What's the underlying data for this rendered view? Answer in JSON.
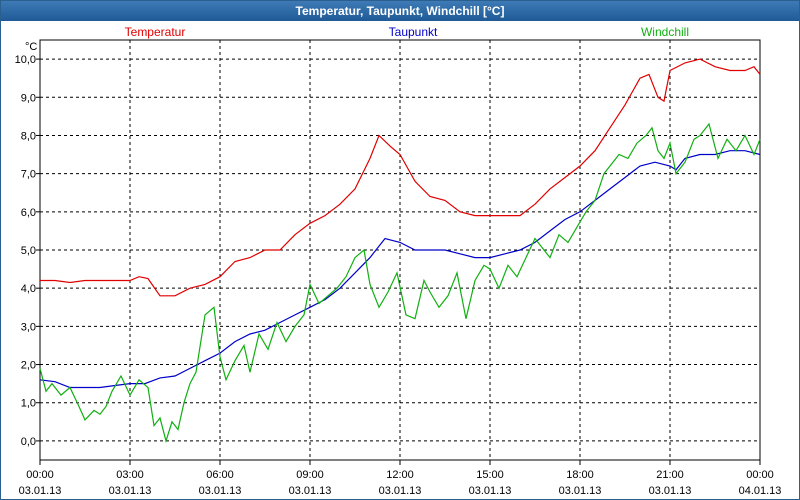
{
  "chart_data": {
    "type": "line",
    "title": "Temperatur, Taupunkt, Windchill [°C]",
    "ylabel": "°C",
    "ylim": [
      -0.5,
      10.5
    ],
    "xlim": [
      0,
      24
    ],
    "grid": true,
    "y_ticks": [
      "0,0",
      "1,0",
      "2,0",
      "3,0",
      "4,0",
      "5,0",
      "6,0",
      "7,0",
      "8,0",
      "9,0",
      "10,0"
    ],
    "x_ticks": [
      {
        "time": "00:00",
        "date": "03.01.13"
      },
      {
        "time": "03:00",
        "date": "03.01.13"
      },
      {
        "time": "06:00",
        "date": "03.01.13"
      },
      {
        "time": "09:00",
        "date": "03.01.13"
      },
      {
        "time": "12:00",
        "date": "03.01.13"
      },
      {
        "time": "15:00",
        "date": "03.01.13"
      },
      {
        "time": "18:00",
        "date": "03.01.13"
      },
      {
        "time": "21:00",
        "date": "03.01.13"
      },
      {
        "time": "00:00",
        "date": "04.01.13"
      }
    ],
    "series": [
      {
        "name": "Temperatur",
        "color": "#e00000",
        "x": [
          0,
          0.5,
          1,
          1.5,
          2,
          2.5,
          3,
          3.3,
          3.6,
          4,
          4.5,
          5,
          5.5,
          6,
          6.5,
          7,
          7.5,
          8,
          8.5,
          9,
          9.5,
          10,
          10.5,
          11,
          11.3,
          11.7,
          12,
          12.5,
          13,
          13.5,
          14,
          14.5,
          15,
          15.5,
          16,
          16.5,
          17,
          17.5,
          18,
          18.5,
          19,
          19.5,
          20,
          20.3,
          20.6,
          20.8,
          21,
          21.5,
          22,
          22.5,
          23,
          23.5,
          23.8,
          24
        ],
        "values": [
          4.2,
          4.2,
          4.15,
          4.2,
          4.2,
          4.2,
          4.2,
          4.3,
          4.25,
          3.8,
          3.8,
          4.0,
          4.1,
          4.3,
          4.7,
          4.8,
          5.0,
          5.0,
          5.4,
          5.7,
          5.9,
          6.2,
          6.6,
          7.4,
          8.0,
          7.7,
          7.5,
          6.8,
          6.4,
          6.3,
          6.0,
          5.9,
          5.9,
          5.9,
          5.9,
          6.2,
          6.6,
          6.9,
          7.2,
          7.6,
          8.2,
          8.8,
          9.5,
          9.6,
          9.0,
          8.9,
          9.7,
          9.9,
          10.0,
          9.8,
          9.7,
          9.7,
          9.8,
          9.6
        ]
      },
      {
        "name": "Taupunkt",
        "color": "#0000c8",
        "x": [
          0,
          0.5,
          1,
          1.5,
          2,
          2.5,
          3,
          3.5,
          4,
          4.5,
          5,
          5.5,
          6,
          6.5,
          7,
          7.5,
          8,
          8.5,
          9,
          9.5,
          10,
          10.5,
          11,
          11.5,
          12,
          12.5,
          13,
          13.5,
          14,
          14.5,
          15,
          15.5,
          16,
          16.5,
          17,
          17.5,
          18,
          18.5,
          19,
          19.5,
          20,
          20.5,
          21,
          21.2,
          21.5,
          22,
          22.5,
          23,
          23.5,
          24
        ],
        "values": [
          1.6,
          1.55,
          1.4,
          1.4,
          1.4,
          1.45,
          1.5,
          1.5,
          1.65,
          1.7,
          1.9,
          2.1,
          2.3,
          2.6,
          2.8,
          2.9,
          3.1,
          3.3,
          3.5,
          3.7,
          4.0,
          4.4,
          4.8,
          5.3,
          5.2,
          5.0,
          5.0,
          5.0,
          4.9,
          4.8,
          4.8,
          4.9,
          5.0,
          5.2,
          5.5,
          5.8,
          6.0,
          6.3,
          6.6,
          6.9,
          7.2,
          7.3,
          7.2,
          7.1,
          7.4,
          7.5,
          7.5,
          7.6,
          7.6,
          7.5
        ]
      },
      {
        "name": "Windchill",
        "color": "#10b010",
        "x": [
          0,
          0.2,
          0.4,
          0.7,
          1,
          1.3,
          1.5,
          1.8,
          2,
          2.2,
          2.4,
          2.7,
          3,
          3.3,
          3.6,
          3.8,
          4,
          4.2,
          4.4,
          4.6,
          4.8,
          5,
          5.2,
          5.5,
          5.8,
          6,
          6.2,
          6.5,
          6.8,
          7,
          7.3,
          7.6,
          7.9,
          8.2,
          8.5,
          8.8,
          9,
          9.3,
          9.6,
          9.9,
          10.2,
          10.5,
          10.8,
          11,
          11.3,
          11.6,
          11.9,
          12.2,
          12.5,
          12.8,
          13,
          13.3,
          13.6,
          13.9,
          14.2,
          14.5,
          14.8,
          15,
          15.3,
          15.6,
          15.9,
          16.2,
          16.5,
          16.8,
          17,
          17.3,
          17.6,
          17.9,
          18.2,
          18.5,
          18.8,
          19,
          19.3,
          19.6,
          19.9,
          20.2,
          20.4,
          20.6,
          20.8,
          21,
          21.2,
          21.5,
          21.8,
          22,
          22.3,
          22.6,
          22.9,
          23.2,
          23.5,
          23.8,
          24
        ],
        "values": [
          1.9,
          1.3,
          1.5,
          1.2,
          1.4,
          0.9,
          0.55,
          0.8,
          0.7,
          0.9,
          1.3,
          1.7,
          1.2,
          1.6,
          1.4,
          0.4,
          0.6,
          0.0,
          0.5,
          0.3,
          1.0,
          1.5,
          1.8,
          3.3,
          3.5,
          2.2,
          1.6,
          2.1,
          2.5,
          1.8,
          2.8,
          2.4,
          3.1,
          2.6,
          3.0,
          3.3,
          4.1,
          3.6,
          3.8,
          4.0,
          4.3,
          4.8,
          5.0,
          4.1,
          3.5,
          3.9,
          4.4,
          3.3,
          3.2,
          4.2,
          3.9,
          3.5,
          3.8,
          4.4,
          3.2,
          4.2,
          4.6,
          4.5,
          4.0,
          4.6,
          4.3,
          4.8,
          5.3,
          5.0,
          4.8,
          5.4,
          5.2,
          5.6,
          6.0,
          6.3,
          7.0,
          7.2,
          7.5,
          7.4,
          7.8,
          8.0,
          8.2,
          7.6,
          7.4,
          7.8,
          7.0,
          7.3,
          7.9,
          8.0,
          8.3,
          7.4,
          7.9,
          7.6,
          8.0,
          7.5,
          7.9
        ]
      }
    ]
  }
}
